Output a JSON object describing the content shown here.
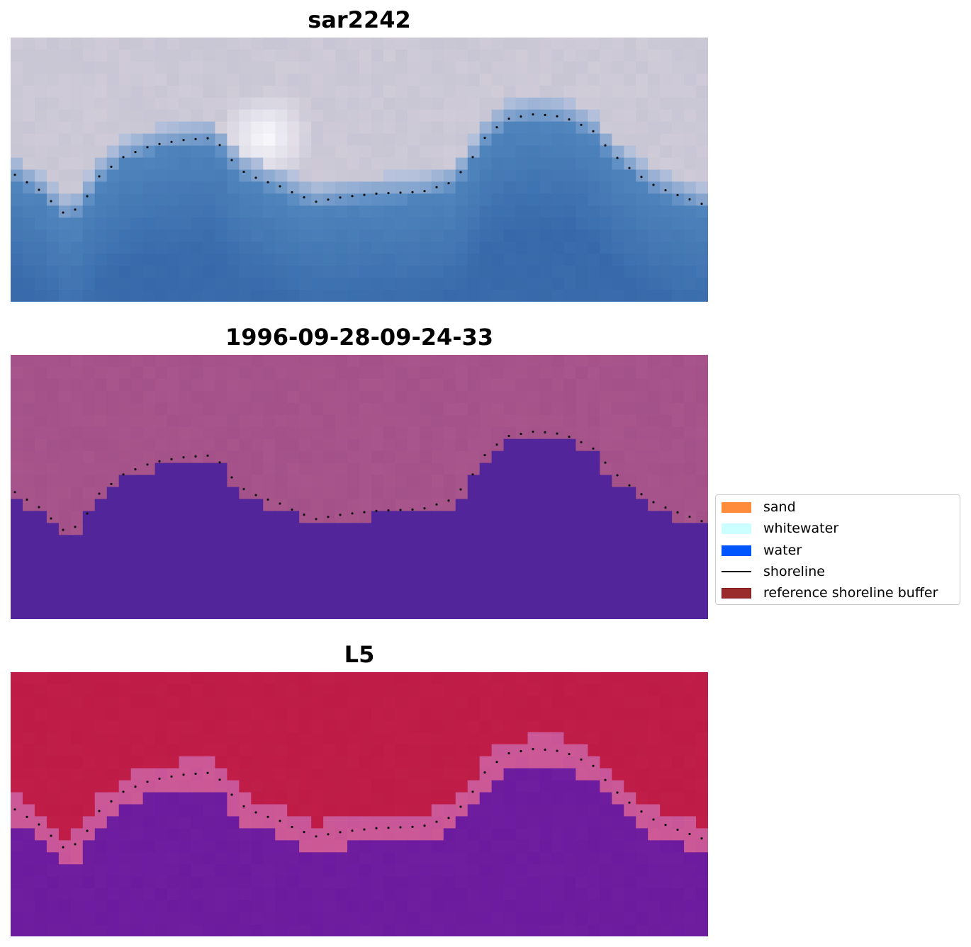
{
  "panels": [
    {
      "title": "sar2242",
      "style": "rgb-coastal"
    },
    {
      "title": "1996-09-28-09-24-33",
      "style": "classified"
    },
    {
      "title": "L5",
      "style": "probability"
    }
  ],
  "legend": {
    "items": [
      {
        "label": "sand",
        "type": "patch",
        "color": "#ff8c3a",
        "border": "#ff8c3a"
      },
      {
        "label": "whitewater",
        "type": "patch",
        "color": "#ccffff",
        "border": "#ccffff"
      },
      {
        "label": "water",
        "type": "patch",
        "color": "#0055ff",
        "border": "#0055ff"
      },
      {
        "label": "shoreline",
        "type": "line",
        "color": "#000000"
      },
      {
        "label": "reference shoreline buffer",
        "type": "patch",
        "color": "#9b2c2c",
        "border": "#7a1a1a"
      }
    ]
  },
  "colors": {
    "water_deep": "#3a6fae",
    "sky_haze": "#c8c8d6",
    "classified_land": "#a14f86",
    "classified_water": "#52259a",
    "prob_land": "#be1c48",
    "prob_water": "#6a1aa0",
    "shoreline_dots": "#111111"
  }
}
